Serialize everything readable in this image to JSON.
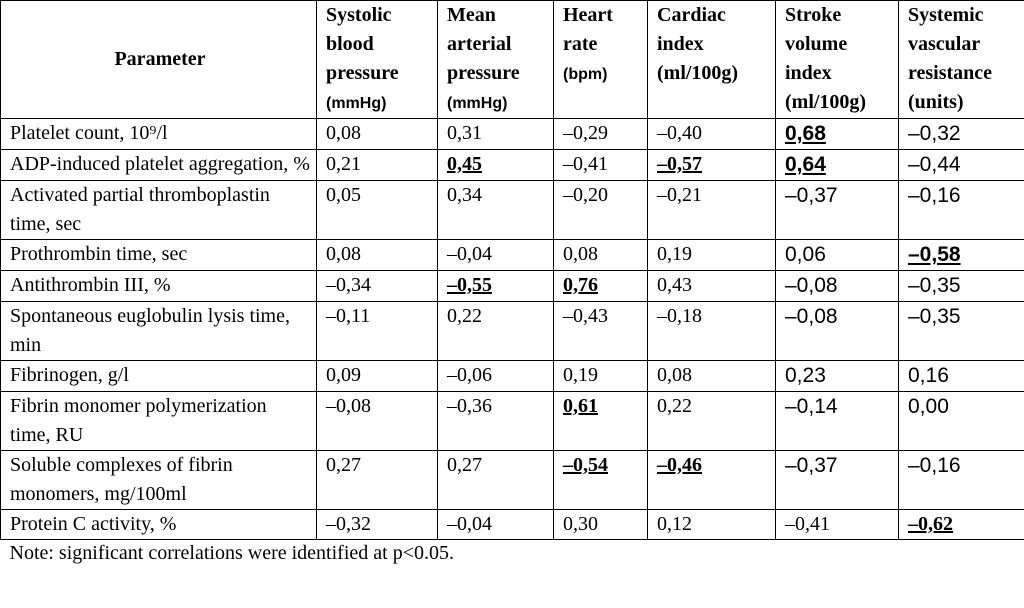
{
  "table": {
    "columns": [
      {
        "label": "Parameter"
      },
      {
        "label": "Systolic blood pressure",
        "unit": "(mmHg)"
      },
      {
        "label": "Mean arterial pressure",
        "unit": "(mmHg)"
      },
      {
        "label": "Heart rate",
        "unit": "(bpm)"
      },
      {
        "label": "Cardiac index",
        "unit": "(ml/100g)"
      },
      {
        "label": "Stroke volume index",
        "unit": "(ml/100g)"
      },
      {
        "label": "Systemic vascular resistance",
        "unit": "(units)"
      }
    ],
    "rows": [
      [
        "Platelet count,  10⁹/l",
        "0,08",
        "0,31",
        "–0,29",
        "–0,40",
        "0,68",
        "–0,32"
      ],
      [
        "ADP-induced platelet aggregation, %",
        "0,21",
        "0,45",
        "–0,41",
        "–0,57",
        "0,64",
        "–0,44"
      ],
      [
        "Activated partial thromboplastin time, sec",
        "0,05",
        "0,34",
        "–0,20",
        "–0,21",
        "–0,37",
        "–0,16"
      ],
      [
        "Prothrombin  time, sec",
        "0,08",
        "–0,04",
        "0,08",
        "0,19",
        "0,06",
        "–0,58"
      ],
      [
        "Antithrombin  III, %",
        "–0,34",
        "–0,55",
        "0,76",
        "0,43",
        "–0,08",
        "–0,35"
      ],
      [
        "Spontaneous euglobulin lysis time, min",
        "–0,11",
        "0,22",
        "–0,43",
        "–0,18",
        "–0,08",
        "–0,35"
      ],
      [
        "Fibrinogen,  g/l",
        "0,09",
        "–0,06",
        "0,19",
        "0,08",
        "0,23",
        "0,16"
      ],
      [
        "Fibrin monomer polymerization time, RU",
        "–0,08",
        "–0,36",
        "0,61",
        "0,22",
        "–0,14",
        "0,00"
      ],
      [
        "Soluble complexes of fibrin monomers, mg/100ml",
        "0,27",
        "0,27",
        "–0,54",
        "–0,46",
        "–0,37",
        "–0,16"
      ],
      [
        "Protein C   activity, %",
        "–0,32",
        "–0,04",
        "0,30",
        "0,12",
        "–0,41",
        "–0,62"
      ]
    ],
    "note": "Note: significant correlations were identified at p<0.05."
  }
}
